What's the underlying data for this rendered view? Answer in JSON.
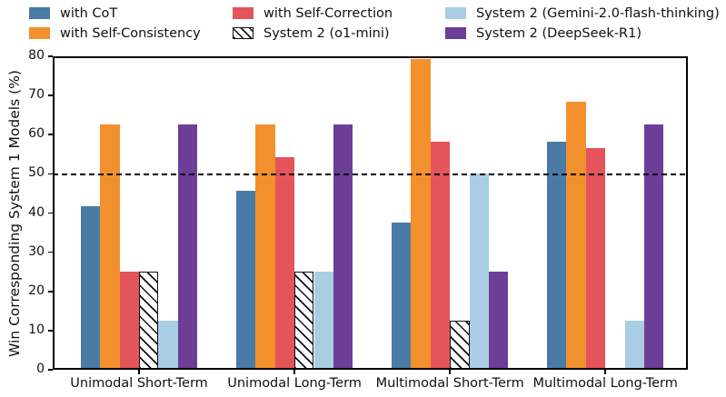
{
  "figure": {
    "background": "#ffffff",
    "axis_color": "#000000",
    "text_color": "#111111"
  },
  "chart_data": {
    "type": "bar",
    "title": "",
    "xlabel": "",
    "ylabel": "Win Corresponding System 1 Models (%)",
    "ylim": [
      0,
      80
    ],
    "yticks": [
      0,
      10,
      20,
      30,
      40,
      50,
      60,
      70,
      80
    ],
    "reference_line_y": 50,
    "grid": false,
    "legend_position": "top",
    "categories": [
      "Unimodal Short-Term",
      "Unimodal Long-Term",
      "Multimodal Short-Term",
      "Multimodal Long-Term"
    ],
    "series": [
      {
        "name": "with CoT",
        "color": "#4a7ba6",
        "hatch": false,
        "values": [
          41.7,
          45.8,
          37.5,
          58.3
        ]
      },
      {
        "name": "with Self-Consistency",
        "color": "#f2902d",
        "hatch": false,
        "values": [
          62.5,
          62.5,
          79.2,
          68.3
        ]
      },
      {
        "name": "with Self-Correction",
        "color": "#e3555a",
        "hatch": false,
        "values": [
          25.0,
          54.2,
          58.3,
          56.5
        ]
      },
      {
        "name": "System 2 (o1-mini)",
        "color": "#ffffff",
        "hatch": true,
        "values": [
          25.0,
          25.0,
          12.5,
          0.5
        ]
      },
      {
        "name": "System 2 (Gemini-2.0-flash-thinking)",
        "color": "#a9cde2",
        "hatch": false,
        "values": [
          12.5,
          25.0,
          50.0,
          12.5
        ]
      },
      {
        "name": "System 2 (DeepSeek-R1)",
        "color": "#6d3e98",
        "hatch": false,
        "values": [
          62.5,
          62.5,
          25.0,
          62.5
        ]
      }
    ]
  }
}
